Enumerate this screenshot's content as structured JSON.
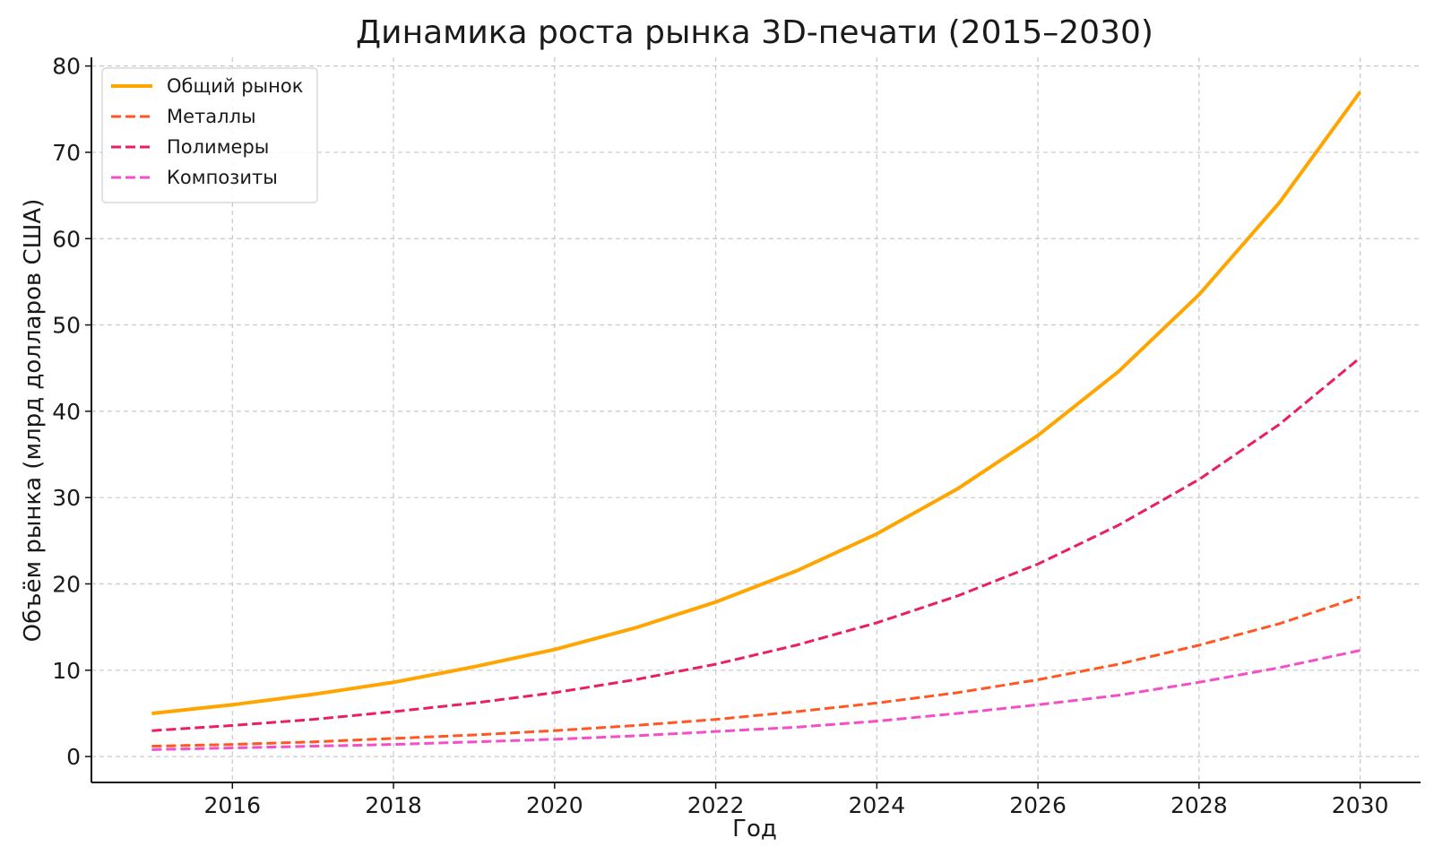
{
  "chart_data": {
    "type": "line",
    "title": "Динамика роста рынка 3D-печати (2015–2030)",
    "xlabel": "Год",
    "ylabel": "Объём рынка (млрд долларов США)",
    "xlim": [
      2014.25,
      2030.75
    ],
    "ylim": [
      -3,
      81
    ],
    "x_ticks": [
      2016,
      2018,
      2020,
      2022,
      2024,
      2026,
      2028,
      2030
    ],
    "y_ticks": [
      0,
      10,
      20,
      30,
      40,
      50,
      60,
      70,
      80
    ],
    "grid": true,
    "legend_position": "top-left",
    "x": [
      2015,
      2016,
      2017,
      2018,
      2019,
      2020,
      2021,
      2022,
      2023,
      2024,
      2025,
      2026,
      2027,
      2028,
      2029,
      2030
    ],
    "series": [
      {
        "name": "Общий рынок",
        "style": "solid",
        "color": "#FFA500",
        "values": [
          5.0,
          6.0,
          7.2,
          8.6,
          10.4,
          12.4,
          14.9,
          17.9,
          21.5,
          25.8,
          31.0,
          37.2,
          44.6,
          53.5,
          64.2,
          77.0
        ]
      },
      {
        "name": "Металлы",
        "style": "dashed",
        "color": "#FF5722",
        "values": [
          1.2,
          1.4,
          1.7,
          2.1,
          2.5,
          3.0,
          3.6,
          4.3,
          5.2,
          6.2,
          7.4,
          8.9,
          10.7,
          12.9,
          15.4,
          18.5
        ]
      },
      {
        "name": "Полимеры",
        "style": "dashed",
        "color": "#E91E63",
        "values": [
          3.0,
          3.6,
          4.3,
          5.2,
          6.2,
          7.4,
          8.9,
          10.7,
          12.9,
          15.5,
          18.6,
          22.3,
          26.8,
          32.1,
          38.5,
          46.2
        ]
      },
      {
        "name": "Композиты",
        "style": "dashed",
        "color": "#F24FC8",
        "values": [
          0.8,
          1.0,
          1.2,
          1.4,
          1.7,
          2.0,
          2.4,
          2.9,
          3.4,
          4.1,
          5.0,
          6.0,
          7.1,
          8.6,
          10.3,
          12.3
        ]
      }
    ]
  }
}
